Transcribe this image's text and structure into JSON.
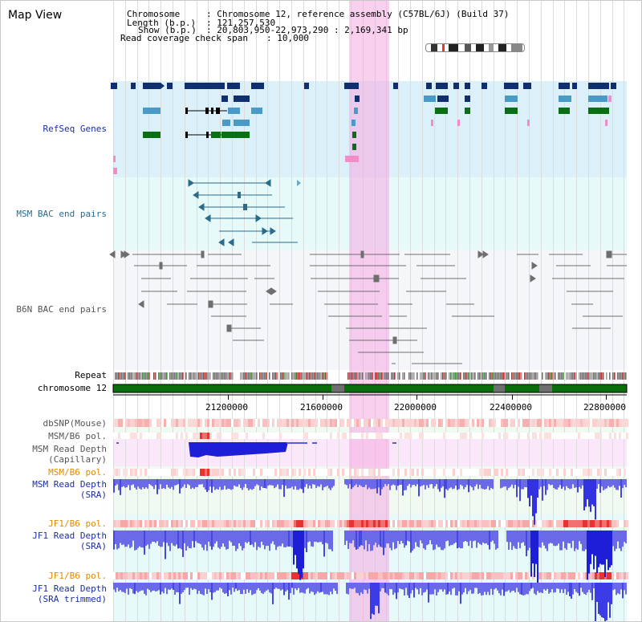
{
  "header": {
    "title": "Map View",
    "chromosome_label": "Chromosome",
    "chromosome_value": ": Chromosome 12, reference assembly (C57BL/6J) (Build 37)",
    "length_label": "Length (b.p.)",
    "length_value": ": 121,257,530",
    "show_label": "Show (b.p.)",
    "show_value": ": 20,803,950-22,973,290 : 2,169,341 bp",
    "coverage_label": "Read coverage check span",
    "coverage_value": ": 10,000"
  },
  "tracks": {
    "refseq": "RefSeq Genes",
    "msm_bac": "MSM BAC end pairs",
    "b6n_bac": "B6N BAC end pairs",
    "repeat": "Repeat",
    "chromosome": "chromosome 12",
    "dbsnp": "dbSNP(Mouse)",
    "msm_b6_pol_1": "MSM/B6 pol.",
    "msm_read_depth_cap_1": "MSM Read Depth",
    "msm_read_depth_cap_2": "(Capillary)",
    "msm_b6_pol_2": "MSM/B6 pol.",
    "msm_read_depth_sra_1": "MSM Read Depth",
    "msm_read_depth_sra_2": "(SRA)",
    "jf1_b6_pol_1": "JF1/B6 pol.",
    "jf1_read_depth_sra_1": "JF1 Read Depth",
    "jf1_read_depth_sra_2": "(SRA)",
    "jf1_b6_pol_2": "JF1/B6 pol.",
    "jf1_read_depth_trim_1": "JF1 Read Depth",
    "jf1_read_depth_trim_2": "(SRA trimmed)"
  },
  "axis": {
    "ticks": [
      "21200000",
      "21600000",
      "22000000",
      "22400000",
      "22800000"
    ]
  },
  "colors": {
    "refseq_bg": "#dcf0fa",
    "bac_bg": "#e6fafa",
    "b6n_bg": "#f4f6fa",
    "highlight": "#f5b4e6",
    "gene_dark": "#0f2f6e",
    "gene_mid": "#4a9ac8",
    "gene_green": "#0a6e12",
    "chromosome_green": "#0a6e0a",
    "depth_blue": "#3c46e6",
    "pol_red": "#e63232"
  }
}
